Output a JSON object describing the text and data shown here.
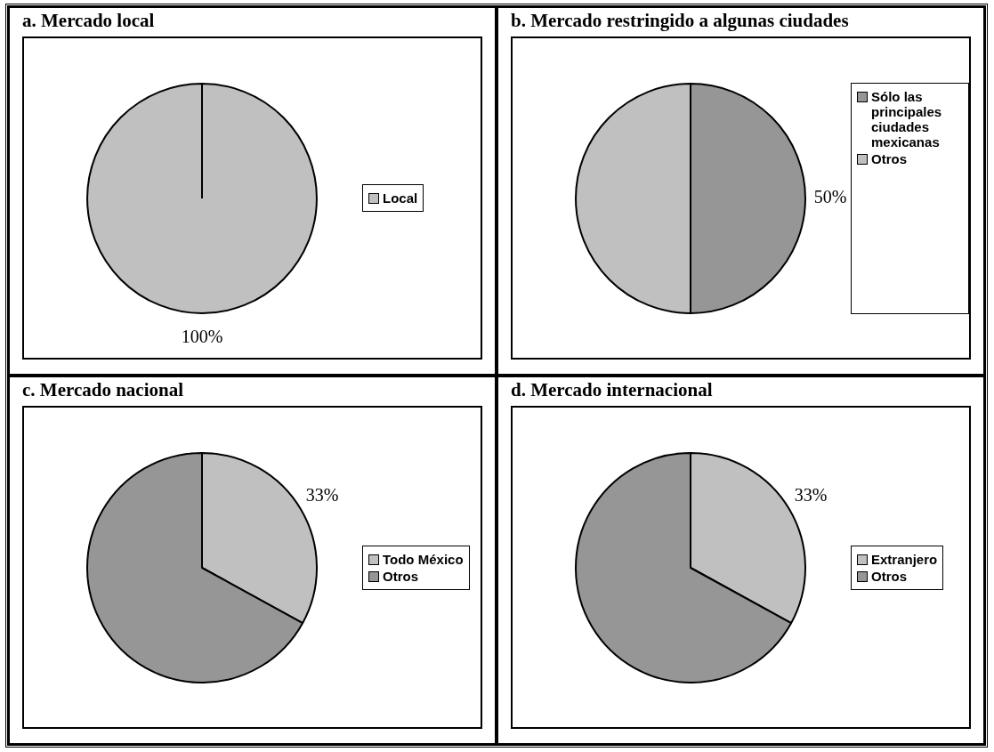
{
  "chart_data": [
    {
      "type": "pie",
      "title": "a. Mercado local",
      "categories": [
        "Local"
      ],
      "values": [
        100
      ],
      "colors": [
        "#c0c0c0"
      ],
      "value_labels": [
        "100%"
      ],
      "legend": "right"
    },
    {
      "type": "pie",
      "title": "b. Mercado restringido a algunas ciudades",
      "categories": [
        "Sólo las principales ciudades mexicanas",
        "Otros"
      ],
      "values": [
        50,
        50
      ],
      "colors": [
        "#969696",
        "#c0c0c0"
      ],
      "value_labels": [
        "50%",
        null
      ],
      "legend": "right"
    },
    {
      "type": "pie",
      "title": "c. Mercado nacional",
      "categories": [
        "Todo México",
        "Otros"
      ],
      "values": [
        33,
        67
      ],
      "colors": [
        "#c0c0c0",
        "#969696"
      ],
      "value_labels": [
        "33%",
        null
      ],
      "legend": "right"
    },
    {
      "type": "pie",
      "title": "d. Mercado internacional",
      "categories": [
        "Extranjero",
        "Otros"
      ],
      "values": [
        33,
        67
      ],
      "colors": [
        "#c0c0c0",
        "#969696"
      ],
      "value_labels": [
        "33%",
        null
      ],
      "legend": "right"
    }
  ]
}
